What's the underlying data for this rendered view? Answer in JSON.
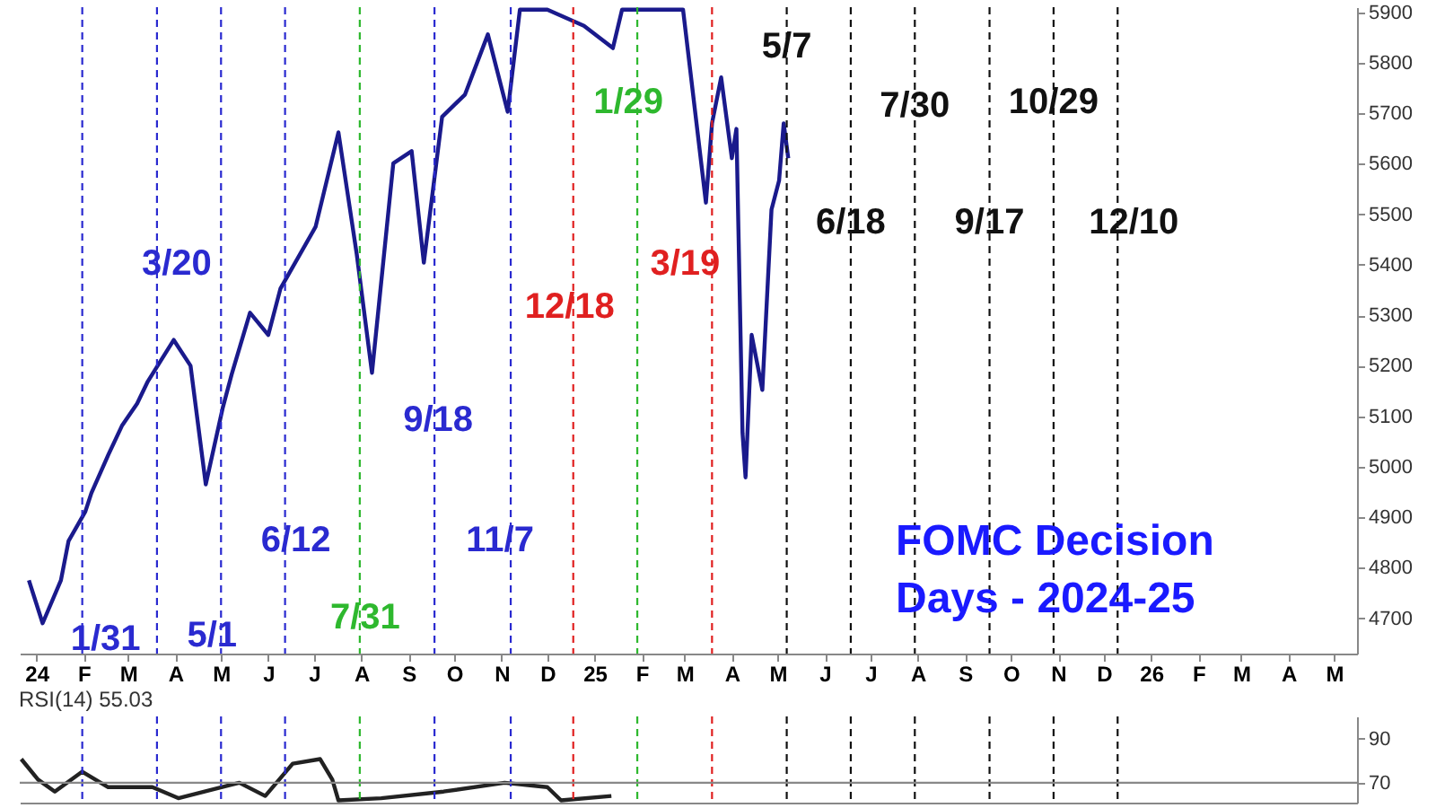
{
  "chart_data": [
    {
      "type": "line",
      "annotations": [
        "FOMC Decision Days - 2024-25"
      ],
      "x": [
        "2023-12-27",
        "2024-01-05",
        "2024-01-17",
        "2024-01-22",
        "2024-02-02",
        "2024-02-06",
        "2024-02-17",
        "2024-02-26",
        "2024-03-07",
        "2024-03-14",
        "2024-03-31",
        "2024-04-11",
        "2024-04-21",
        "2024-05-02",
        "2024-05-08",
        "2024-05-20",
        "2024-06-01",
        "2024-06-09",
        "2024-07-02",
        "2024-07-17",
        "2024-07-29",
        "2024-08-08",
        "2024-08-22",
        "2024-09-03",
        "2024-09-11",
        "2024-09-23",
        "2024-10-08",
        "2024-10-23",
        "2024-11-05",
        "2024-11-13",
        "2024-12-01",
        "2024-12-25",
        "2025-01-13",
        "2025-01-19",
        "2025-02-05",
        "2025-02-28",
        "2025-03-15",
        "2025-03-19",
        "2025-03-25",
        "2025-04-01",
        "2025-04-04",
        "2025-04-08",
        "2025-04-10",
        "2025-04-14",
        "2025-04-21",
        "2025-04-27",
        "2025-05-02",
        "2025-05-05",
        "2025-05-08"
      ],
      "series": [
        {
          "color": "#1a1a8c",
          "values": [
            4775,
            4690,
            4775,
            4853,
            4911,
            4948,
            5023,
            5081,
            5125,
            5169,
            5251,
            5200,
            4965,
            5115,
            5183,
            5305,
            5261,
            5353,
            5475,
            5662,
            5421,
            5186,
            5601,
            5625,
            5404,
            5693,
            5737,
            5856,
            5703,
            5905,
            5905,
            5873,
            5829,
            5905,
            5905,
            5905,
            5523,
            5680,
            5771,
            5611,
            5669,
            5067,
            4979,
            5261,
            5152,
            5509,
            5567,
            5680,
            5611
          ]
        }
      ],
      "xlim": [
        "2023-12-21",
        "2026-05-16"
      ],
      "xticks": [
        {
          "value": "2024-01-01",
          "label": "24"
        },
        {
          "value": "2024-02-01",
          "label": "F"
        },
        {
          "value": "2024-03-01",
          "label": "M"
        },
        {
          "value": "2024-04-01",
          "label": "A"
        },
        {
          "value": "2024-05-01",
          "label": "M"
        },
        {
          "value": "2024-06-01",
          "label": "J"
        },
        {
          "value": "2024-07-01",
          "label": "J"
        },
        {
          "value": "2024-08-01",
          "label": "A"
        },
        {
          "value": "2024-09-01",
          "label": "S"
        },
        {
          "value": "2024-10-01",
          "label": "O"
        },
        {
          "value": "2024-11-01",
          "label": "N"
        },
        {
          "value": "2024-12-01",
          "label": "D"
        },
        {
          "value": "2025-01-01",
          "label": "25"
        },
        {
          "value": "2025-02-01",
          "label": "F"
        },
        {
          "value": "2025-03-01",
          "label": "M"
        },
        {
          "value": "2025-04-01",
          "label": "A"
        },
        {
          "value": "2025-05-01",
          "label": "M"
        },
        {
          "value": "2025-06-01",
          "label": "J"
        },
        {
          "value": "2025-07-01",
          "label": "J"
        },
        {
          "value": "2025-08-01",
          "label": "A"
        },
        {
          "value": "2025-09-01",
          "label": "S"
        },
        {
          "value": "2025-10-01",
          "label": "O"
        },
        {
          "value": "2025-11-01",
          "label": "N"
        },
        {
          "value": "2025-12-01",
          "label": "D"
        },
        {
          "value": "2026-01-01",
          "label": "26"
        },
        {
          "value": "2026-02-01",
          "label": "F"
        },
        {
          "value": "2026-03-01",
          "label": "M"
        },
        {
          "value": "2026-04-01",
          "label": "A"
        },
        {
          "value": "2026-05-01",
          "label": "M"
        }
      ],
      "ylim": [
        4630,
        5910
      ],
      "yticks": [
        4700,
        4800,
        4900,
        5000,
        5100,
        5200,
        5300,
        5400,
        5500,
        5600,
        5700,
        5800,
        5900
      ],
      "ref_lines": [
        {
          "axis": "x",
          "value": "2024-01-31",
          "label": "1/31",
          "color": "#2a2ad0",
          "line_style": "dashed"
        },
        {
          "axis": "x",
          "value": "2024-03-20",
          "label": "3/20",
          "color": "#2a2ad0",
          "line_style": "dashed"
        },
        {
          "axis": "x",
          "value": "2024-05-01",
          "label": "5/1",
          "color": "#2a2ad0",
          "line_style": "dashed"
        },
        {
          "axis": "x",
          "value": "2024-06-12",
          "label": "6/12",
          "color": "#2a2ad0",
          "line_style": "dashed"
        },
        {
          "axis": "x",
          "value": "2024-07-31",
          "label": "7/31",
          "color": "#2eb82e",
          "line_style": "dashed"
        },
        {
          "axis": "x",
          "value": "2024-09-18",
          "label": "9/18",
          "color": "#2a2ad0",
          "line_style": "dashed"
        },
        {
          "axis": "x",
          "value": "2024-11-07",
          "label": "11/7",
          "color": "#2a2ad0",
          "line_style": "dashed"
        },
        {
          "axis": "x",
          "value": "2024-12-18",
          "label": "12/18",
          "color": "#e02020",
          "line_style": "dashed"
        },
        {
          "axis": "x",
          "value": "2025-01-29",
          "label": "1/29",
          "color": "#2eb82e",
          "line_style": "dashed"
        },
        {
          "axis": "x",
          "value": "2025-03-19",
          "label": "3/19",
          "color": "#e02020",
          "line_style": "dashed"
        },
        {
          "axis": "x",
          "value": "2025-05-07",
          "label": "5/7",
          "color": "#111111",
          "line_style": "dashed"
        },
        {
          "axis": "x",
          "value": "2025-06-18",
          "label": "6/18",
          "color": "#111111",
          "line_style": "dashed"
        },
        {
          "axis": "x",
          "value": "2025-07-30",
          "label": "7/30",
          "color": "#111111",
          "line_style": "dashed"
        },
        {
          "axis": "x",
          "value": "2025-09-17",
          "label": "9/17",
          "color": "#111111",
          "line_style": "dashed"
        },
        {
          "axis": "x",
          "value": "2025-10-29",
          "label": "10/29",
          "color": "#111111",
          "line_style": "dashed"
        },
        {
          "axis": "x",
          "value": "2025-12-10",
          "label": "12/10",
          "color": "#111111",
          "line_style": "dashed"
        }
      ],
      "grid": false
    },
    {
      "type": "line",
      "title": "RSI(14) 55.03",
      "x": [
        "2023-12-22",
        "2024-01-02",
        "2024-01-13",
        "2024-01-31",
        "2024-02-17",
        "2024-03-17",
        "2024-04-03",
        "2024-05-13",
        "2024-05-30",
        "2024-06-17",
        "2024-07-05",
        "2024-07-13",
        "2024-07-17",
        "2024-08-14",
        "2024-09-24",
        "2024-11-03",
        "2024-12-01",
        "2024-12-10",
        "2025-01-12"
      ],
      "series": [
        {
          "color": "#222222",
          "values": [
            80.7,
            71.4,
            66,
            75,
            68,
            68,
            63,
            70,
            64,
            78.6,
            80.7,
            71.4,
            62,
            63,
            66,
            70,
            68,
            62,
            64
          ]
        }
      ],
      "xlim": [
        "2023-12-21",
        "2026-05-16"
      ],
      "ylim": [
        61,
        100
      ],
      "yticks": [
        70,
        90
      ],
      "tick_labels": "y",
      "grid": false,
      "ref_lines": [
        {
          "axis": "y",
          "value": 70,
          "color": "#888888",
          "line_style": "solid"
        },
        {
          "axis": "x",
          "value": "2024-01-31",
          "color": "#2a2ad0",
          "line_style": "dashed"
        },
        {
          "axis": "x",
          "value": "2024-03-20",
          "color": "#2a2ad0",
          "line_style": "dashed"
        },
        {
          "axis": "x",
          "value": "2024-05-01",
          "color": "#2a2ad0",
          "line_style": "dashed"
        },
        {
          "axis": "x",
          "value": "2024-06-12",
          "color": "#2a2ad0",
          "line_style": "dashed"
        },
        {
          "axis": "x",
          "value": "2024-07-31",
          "color": "#2eb82e",
          "line_style": "dashed"
        },
        {
          "axis": "x",
          "value": "2024-09-18",
          "color": "#2a2ad0",
          "line_style": "dashed"
        },
        {
          "axis": "x",
          "value": "2024-11-07",
          "color": "#2a2ad0",
          "line_style": "dashed"
        },
        {
          "axis": "x",
          "value": "2024-12-18",
          "color": "#e02020",
          "line_style": "dashed"
        },
        {
          "axis": "x",
          "value": "2025-01-29",
          "color": "#2eb82e",
          "line_style": "dashed"
        },
        {
          "axis": "x",
          "value": "2025-03-19",
          "color": "#e02020",
          "line_style": "dashed"
        },
        {
          "axis": "x",
          "value": "2025-05-07",
          "color": "#111111",
          "line_style": "dashed"
        },
        {
          "axis": "x",
          "value": "2025-06-18",
          "color": "#111111",
          "line_style": "dashed"
        },
        {
          "axis": "x",
          "value": "2025-07-30",
          "color": "#111111",
          "line_style": "dashed"
        },
        {
          "axis": "x",
          "value": "2025-09-17",
          "color": "#111111",
          "line_style": "dashed"
        },
        {
          "axis": "x",
          "value": "2025-10-29",
          "color": "#111111",
          "line_style": "dashed"
        },
        {
          "axis": "x",
          "value": "2025-12-10",
          "color": "#111111",
          "line_style": "dashed"
        }
      ]
    }
  ]
}
